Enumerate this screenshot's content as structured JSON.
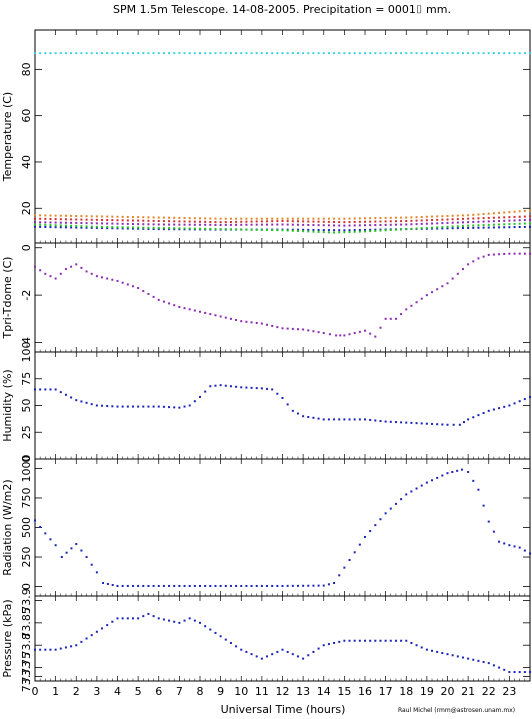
{
  "title": "SPM 1.5m Telescope. 14-08-2005. Precipitation = 0001⌷ mm.",
  "xlabel": "Universal Time (hours)",
  "credit": "Raul Michel (rmm@astrosen.unam.mx)",
  "x_ticks": [
    "0",
    "1",
    "2",
    "3",
    "4",
    "5",
    "6",
    "7",
    "8",
    "9",
    "10",
    "11",
    "12",
    "13",
    "14",
    "15",
    "16",
    "17",
    "18",
    "19",
    "20",
    "21",
    "22",
    "23"
  ],
  "colors": {
    "cyan": "#39d3de",
    "orange": "#e0862a",
    "red": "#d03030",
    "purple": "#8b2bb0",
    "green": "#27c227",
    "blue": "#1a23b8"
  },
  "chart_data": [
    {
      "type": "scatter",
      "ylabel": "Temperature (C)",
      "ylim": [
        5,
        97
      ],
      "yticks": [
        "20",
        "40",
        "60",
        "80"
      ],
      "series": [
        {
          "color": "cyan",
          "x": [
            0,
            24
          ],
          "y": [
            87,
            87
          ]
        },
        {
          "color": "orange",
          "x": [
            0,
            3,
            6,
            9,
            12,
            15,
            18,
            21,
            24
          ],
          "y": [
            17,
            16.5,
            16,
            15.5,
            15.5,
            15.5,
            16,
            17,
            19
          ]
        },
        {
          "color": "red",
          "x": [
            0,
            3,
            6,
            9,
            12,
            15,
            18,
            21,
            24
          ],
          "y": [
            15.5,
            15,
            14.5,
            14,
            14.5,
            14,
            14.5,
            15.5,
            16.5
          ]
        },
        {
          "color": "purple",
          "x": [
            0,
            3,
            6,
            9,
            12,
            15,
            18,
            21,
            24
          ],
          "y": [
            14,
            13.5,
            13,
            12.8,
            13,
            12.5,
            13,
            14,
            15
          ]
        },
        {
          "color": "blue",
          "x": [
            0,
            3,
            6,
            9,
            12,
            15,
            18,
            21,
            24
          ],
          "y": [
            12,
            11.5,
            11,
            10.8,
            10.8,
            10.5,
            11,
            11.5,
            12
          ]
        },
        {
          "color": "green",
          "x": [
            0,
            3,
            6,
            9,
            12,
            14.5,
            16,
            18,
            21,
            24
          ],
          "y": [
            13,
            12,
            11.5,
            11,
            10.5,
            9.5,
            10,
            11,
            12.5,
            13.5
          ]
        }
      ]
    },
    {
      "type": "scatter",
      "ylabel": "Tpri-Tdome (C)",
      "ylim": [
        -4.4,
        0.2
      ],
      "yticks": [
        "0",
        "-2",
        "-4"
      ],
      "series": [
        {
          "color": "purple",
          "x": [
            0,
            0.5,
            1,
            1.5,
            2,
            2.5,
            3,
            3.5,
            4,
            5,
            6,
            7,
            8,
            9,
            10,
            11,
            12,
            13,
            14,
            14.6,
            15,
            15.5,
            16,
            16.5,
            17,
            17.5,
            18,
            19,
            20,
            20.5,
            21,
            21.5,
            22,
            23,
            24
          ],
          "y": [
            -0.8,
            -1.1,
            -1.3,
            -0.9,
            -0.7,
            -1.0,
            -1.2,
            -1.3,
            -1.4,
            -1.7,
            -2.2,
            -2.5,
            -2.7,
            -2.9,
            -3.1,
            -3.2,
            -3.4,
            -3.45,
            -3.6,
            -3.7,
            -3.7,
            -3.6,
            -3.5,
            -3.75,
            -3.0,
            -3.0,
            -2.6,
            -2.0,
            -1.5,
            -1.1,
            -0.7,
            -0.45,
            -0.3,
            -0.25,
            -0.25
          ]
        }
      ]
    },
    {
      "type": "scatter",
      "ylabel": "Humidity (%)",
      "ylim": [
        0,
        100
      ],
      "yticks": [
        "0",
        "25",
        "50",
        "75",
        "100"
      ],
      "series": [
        {
          "color": "blue",
          "x": [
            0,
            1,
            1.5,
            2,
            3,
            4,
            5,
            6,
            7,
            7.5,
            8,
            8.5,
            9,
            10,
            11,
            11.5,
            12,
            12.5,
            13,
            14,
            15,
            16,
            17,
            18,
            19,
            20,
            20.6,
            21,
            22,
            23,
            24
          ],
          "y": [
            65,
            65,
            60,
            55,
            50,
            49,
            49,
            49,
            48,
            50,
            58,
            68,
            69,
            67,
            66,
            65,
            57,
            45,
            40,
            37,
            37,
            37,
            35,
            34,
            33,
            32,
            32,
            37,
            45,
            50,
            58
          ]
        }
      ]
    },
    {
      "type": "scatter",
      "ylabel": "Radiation (W/m2)",
      "ylim": [
        -80,
        1080
      ],
      "yticks": [
        "0",
        "250",
        "500",
        "750",
        "1000"
      ],
      "series": [
        {
          "color": "blue",
          "x": [
            0,
            0.5,
            1,
            1.3,
            2,
            2.5,
            3,
            3.3,
            4,
            6,
            8,
            10,
            12,
            14,
            14.5,
            15,
            16,
            17,
            18,
            19,
            20,
            20.7,
            21,
            21.5,
            22,
            22.5,
            23,
            23.5,
            24
          ],
          "y": [
            560,
            450,
            350,
            250,
            360,
            250,
            120,
            30,
            5,
            5,
            5,
            5,
            5,
            8,
            30,
            160,
            420,
            620,
            780,
            880,
            960,
            990,
            970,
            820,
            550,
            380,
            350,
            330,
            280
          ]
        }
      ]
    },
    {
      "type": "scatter",
      "ylabel": "Pressure (kPa)",
      "ylim": [
        73.72,
        73.91
      ],
      "yticks": [
        "73.73",
        "73.75",
        "73.8",
        "73.85",
        "73.9"
      ],
      "series": [
        {
          "color": "blue",
          "x": [
            0,
            1,
            2,
            3,
            4,
            5,
            5.5,
            6,
            7,
            7.5,
            8,
            9,
            10,
            11,
            12,
            13,
            14,
            15,
            16,
            17,
            18,
            19,
            20,
            21,
            22,
            23,
            24
          ],
          "y": [
            73.79,
            73.79,
            73.8,
            73.83,
            73.86,
            73.86,
            73.87,
            73.86,
            73.85,
            73.86,
            73.85,
            73.82,
            73.79,
            73.77,
            73.79,
            73.77,
            73.8,
            73.81,
            73.81,
            73.81,
            73.81,
            73.79,
            73.78,
            73.77,
            73.76,
            73.74,
            73.74
          ]
        }
      ]
    }
  ]
}
